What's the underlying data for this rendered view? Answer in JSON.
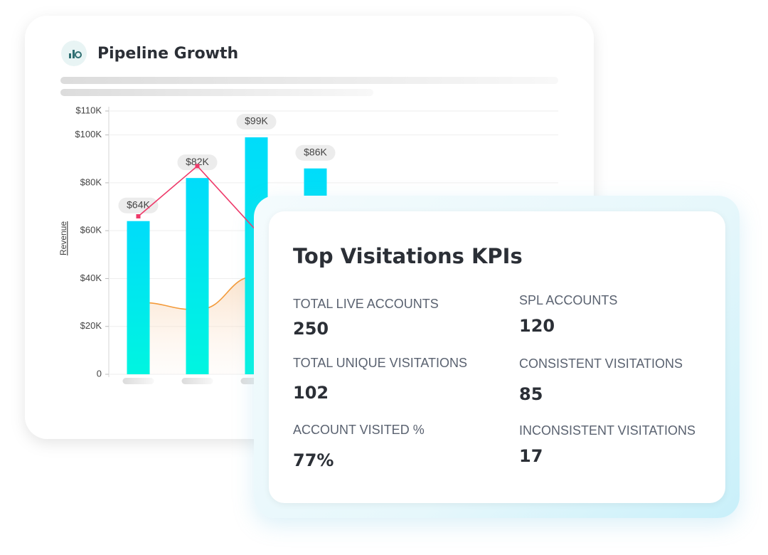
{
  "chart_data": {
    "type": "bar",
    "title": "Pipeline Growth",
    "y_label": "Revenue",
    "categories": [
      null,
      null,
      null,
      null
    ],
    "series": [
      {
        "type": "bar",
        "color": "#00dcfa",
        "values": [
          64000,
          82000,
          99000,
          86000
        ],
        "value_labels": [
          "$64K",
          "$82K",
          "$99K",
          "$86K"
        ]
      },
      {
        "type": "line",
        "color": "#ee3a6a",
        "values": [
          66000,
          87000,
          60000,
          null
        ]
      },
      {
        "type": "area",
        "color": "#f39a3a",
        "values": [
          30000,
          27000,
          41000,
          null
        ]
      }
    ],
    "ylim": [
      0,
      110000
    ],
    "yticks": [
      0,
      {
        "value": 20000,
        "label": "$20K"
      },
      {
        "value": 40000,
        "label": "$40K"
      },
      {
        "value": 60000,
        "label": "$60K"
      },
      {
        "value": 80000,
        "label": "$80K"
      },
      {
        "value": 100000,
        "label": "$100K"
      },
      {
        "value": 110000,
        "label": "$110K"
      }
    ],
    "grid": true
  },
  "kpi_card": {
    "title": "Top Visitations KPIs",
    "items": [
      {
        "label": "TOTAL LIVE ACCOUNTS",
        "value": "250"
      },
      {
        "label": "TOTAL UNIQUE VISITATIONS",
        "value": "102"
      },
      {
        "label": "ACCOUNT VISITED %",
        "value": "77%"
      },
      {
        "label": "SPL ACCOUNTS",
        "value": "120"
      },
      {
        "label": "CONSISTENT VISITATIONS",
        "value": "85"
      },
      {
        "label": "INCONSISTENT VISITATIONS",
        "value": "17"
      }
    ]
  }
}
